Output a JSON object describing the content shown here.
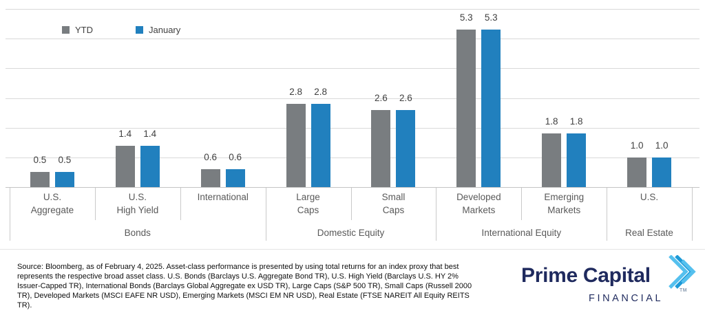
{
  "legend": {
    "ytd_label": "YTD",
    "january_label": "January"
  },
  "chart_data": {
    "type": "bar",
    "title": "",
    "xlabel": "",
    "ylabel": "",
    "categories": [
      "U.S. Aggregate",
      "U.S. High Yield",
      "International",
      "Large Caps",
      "Small Caps",
      "Developed Markets",
      "Emerging Markets",
      "U.S."
    ],
    "category_lines": [
      [
        "U.S.",
        "Aggregate"
      ],
      [
        "U.S.",
        "High Yield"
      ],
      [
        "International"
      ],
      [
        "Large",
        "Caps"
      ],
      [
        "Small",
        "Caps"
      ],
      [
        "Developed",
        "Markets"
      ],
      [
        "Emerging",
        "Markets"
      ],
      [
        "U.S."
      ]
    ],
    "groups": [
      {
        "label": "Bonds",
        "span": 3
      },
      {
        "label": "Domestic Equity",
        "span": 2
      },
      {
        "label": "International Equity",
        "span": 2
      },
      {
        "label": "Real Estate",
        "span": 1
      }
    ],
    "series": [
      {
        "name": "YTD",
        "color": "#797d80",
        "values": [
          0.5,
          1.4,
          0.6,
          2.8,
          2.6,
          5.3,
          1.8,
          1.0
        ]
      },
      {
        "name": "January",
        "color": "#2180be",
        "values": [
          0.5,
          1.4,
          0.6,
          2.8,
          2.6,
          5.3,
          1.8,
          1.0
        ]
      }
    ],
    "ylim": [
      0,
      6
    ],
    "gridline_step": 1,
    "grid": true,
    "legend_position": "top-left",
    "value_label_format": "one-decimal"
  },
  "footnote": {
    "text": "Source: Bloomberg, as of February 4, 2025. Asset-class performance is presented by using total returns for an index proxy that best represents the respective broad asset class. U.S. Bonds (Barclays U.S. Aggregate Bond TR), U.S. High Yield (Barclays U.S. HY 2% Issuer-Capped TR), International Bonds (Barclays Global Aggregate ex USD TR), Large Caps (S&P 500 TR), Small Caps (Russell 2000 TR), Developed Markets (MSCI EAFE NR USD), Emerging Markets (MSCI EM NR USD), Real Estate (FTSE NAREIT All Equity REITS TR)."
  },
  "logo": {
    "name": "Prime Capital",
    "subtitle": "FINANCIAL",
    "trademark": "TM",
    "navy": "#1f2a5e",
    "chevron_light_blue": "#55c0ee",
    "chevron_mid_blue": "#1d9ad7"
  }
}
